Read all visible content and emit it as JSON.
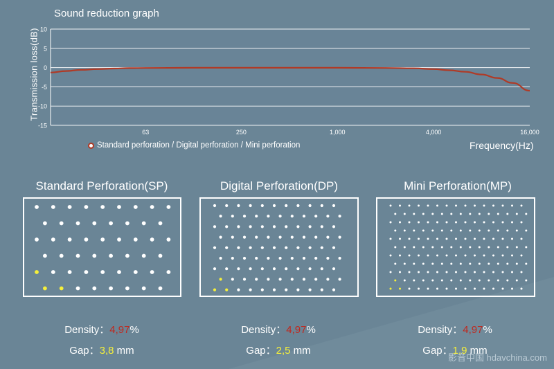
{
  "title": "Sound reduction graph",
  "chart_data": {
    "type": "line",
    "title": "Sound reduction graph",
    "ylabel": "Transmission loss(dB)",
    "xlabel": "Frequency(Hz)",
    "x_scale": "log",
    "xlim": [
      16,
      16000
    ],
    "ylim": [
      -15,
      10
    ],
    "yticks": [
      "10",
      "5",
      "0",
      "-5",
      "-10",
      "-15"
    ],
    "xticks": [
      "63",
      "250",
      "1,000",
      "4,000",
      "16,000"
    ],
    "grid": true,
    "series": [
      {
        "name": "Standard perforation / Digital perforation / Mini perforation",
        "color": "#b03a26",
        "x": [
          16,
          20,
          25,
          31.5,
          40,
          50,
          63,
          125,
          250,
          500,
          1000,
          2000,
          3000,
          4000,
          5000,
          6300,
          8000,
          10000,
          12500,
          16000
        ],
        "y": [
          -1.3,
          -0.9,
          -0.6,
          -0.4,
          -0.25,
          -0.15,
          -0.1,
          -0.05,
          -0.05,
          -0.05,
          -0.05,
          -0.1,
          -0.2,
          -0.4,
          -0.7,
          -1.1,
          -1.8,
          -2.7,
          -4.0,
          -6.0
        ]
      }
    ]
  },
  "legend": {
    "label": "Standard perforation / Digital perforation / Mini perforation"
  },
  "sections": [
    {
      "title": "Standard Perforation(SP)",
      "density_label": "Density：",
      "density_value": "4,97",
      "density_unit": "%",
      "gap_label": "Gap：",
      "gap_value": "3,8",
      "gap_unit": " mm"
    },
    {
      "title": "Digital Perforation(DP)",
      "density_label": "Density：",
      "density_value": "4,97",
      "density_unit": "%",
      "gap_label": "Gap：",
      "gap_value": "2,5",
      "gap_unit": " mm"
    },
    {
      "title": "Mini Perforation(MP)",
      "density_label": "Density：",
      "density_value": "4,97",
      "density_unit": "%",
      "gap_label": "Gap：",
      "gap_value": "1,9",
      "gap_unit": " mm"
    }
  ],
  "colors": {
    "hole": "#ffffff",
    "hole_highlight": "#f6f03a",
    "line": "#b03a26",
    "density_value": "#c0281e",
    "gap_value": "#f6f03a"
  },
  "watermark": "影音中国 hdavchina.com"
}
